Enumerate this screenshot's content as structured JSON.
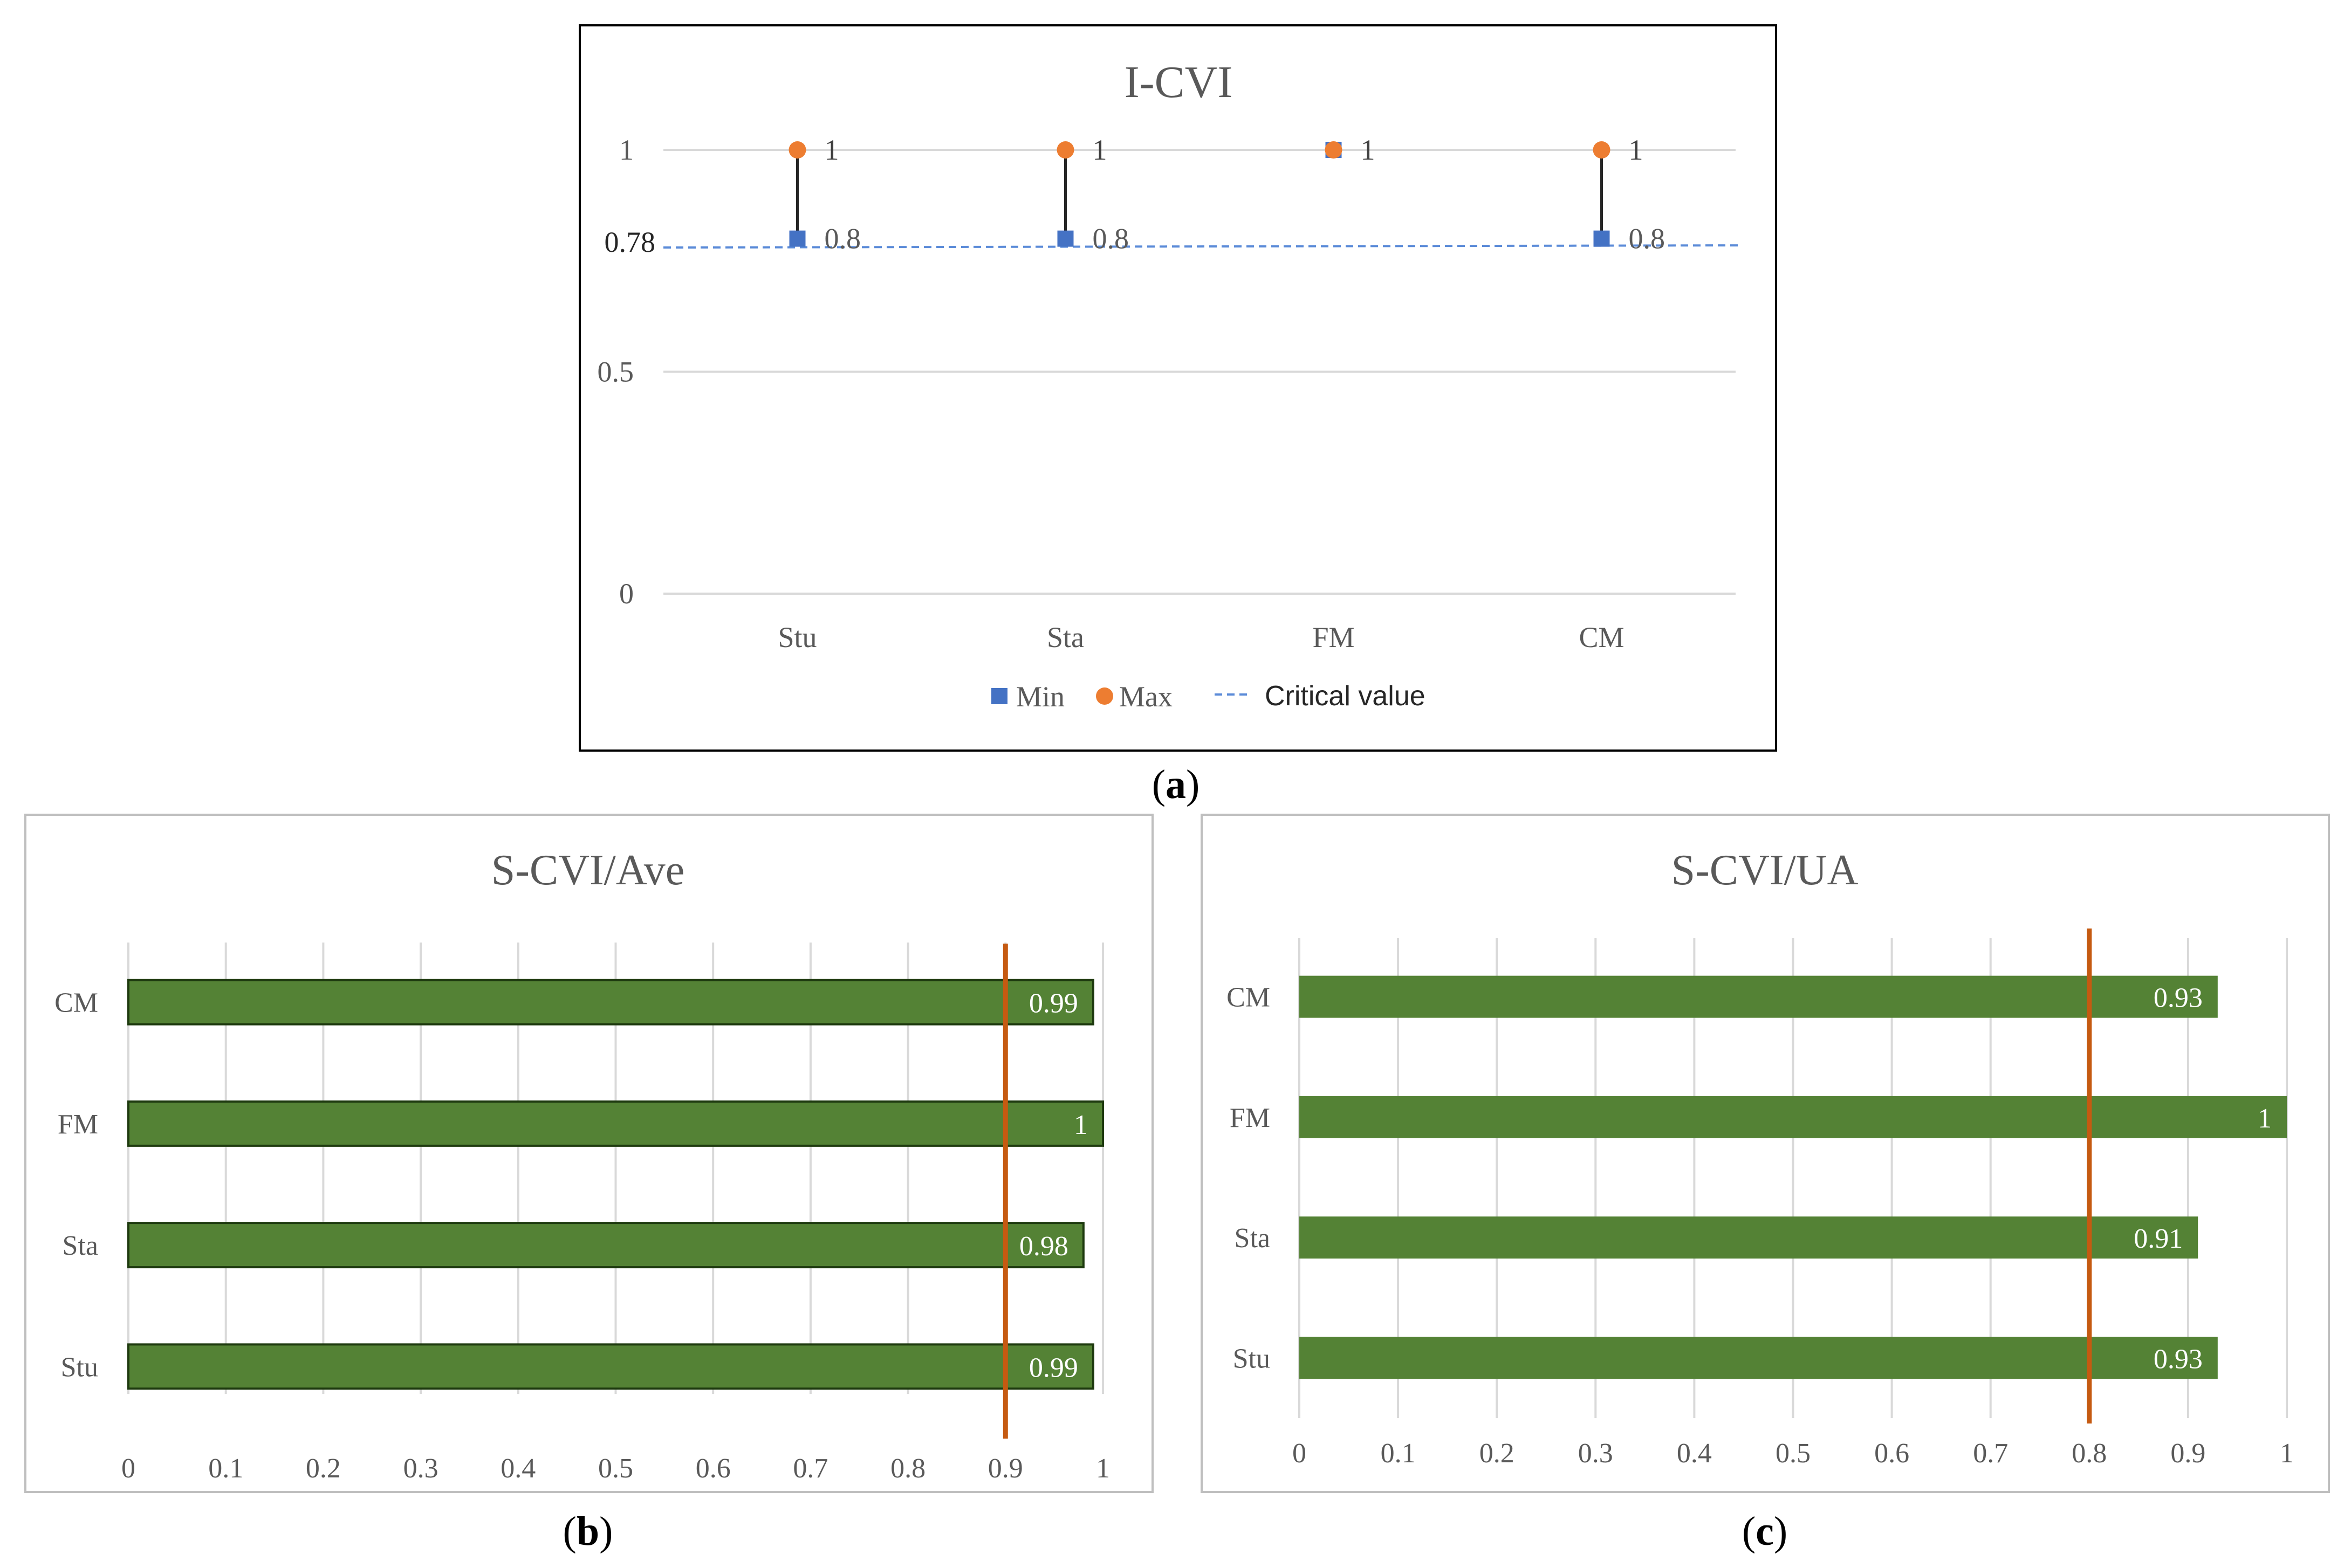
{
  "chart_data": [
    {
      "id": "a",
      "type": "scatter",
      "title": "I-CVI",
      "panel_label": "(a)",
      "panel_letter": "a",
      "categories": [
        "Stu",
        "Sta",
        "FM",
        "CM"
      ],
      "yticks": [
        "0",
        "0.5",
        "1"
      ],
      "ylim": [
        0,
        1
      ],
      "series": [
        {
          "name": "Min",
          "marker": "square",
          "color": "#4472C4",
          "values": [
            0.8,
            0.8,
            1,
            0.8
          ],
          "labels": [
            "0.8",
            "0.8",
            "",
            "0.8"
          ]
        },
        {
          "name": "Max",
          "marker": "circle",
          "color": "#ED7D31",
          "values": [
            1,
            1,
            1,
            1
          ],
          "labels": [
            "1",
            "1",
            "1",
            "1"
          ]
        }
      ],
      "critical_value": {
        "name": "Critical  value",
        "value": 0.78,
        "label": "0.78",
        "color": "#5B8BD8"
      },
      "legend": "bottom",
      "grid": true
    },
    {
      "id": "b",
      "type": "bar",
      "orientation": "horizontal",
      "title": "S-CVI/Ave",
      "panel_label": "(b)",
      "panel_letter": "b",
      "categories": [
        "CM",
        "FM",
        "Sta",
        "Stu"
      ],
      "values": [
        0.99,
        1,
        0.98,
        0.99
      ],
      "labels": [
        "0.99",
        "1",
        "0.98",
        "0.99"
      ],
      "xticks": [
        "0",
        "0.1",
        "0.2",
        "0.3",
        "0.4",
        "0.5",
        "0.6",
        "0.7",
        "0.8",
        "0.9",
        "1"
      ],
      "xlim": [
        0,
        1
      ],
      "reference_line": 0.9,
      "bar_color": "#548235",
      "line_color": "#C55A11",
      "grid": true
    },
    {
      "id": "c",
      "type": "bar",
      "orientation": "horizontal",
      "title": "S-CVI/UA",
      "panel_label": "(c)",
      "panel_letter": "c",
      "categories": [
        "CM",
        "FM",
        "Sta",
        "Stu"
      ],
      "values": [
        0.93,
        1,
        0.91,
        0.93
      ],
      "labels": [
        "0.93",
        "1",
        "0.91",
        "0.93"
      ],
      "xticks": [
        "0",
        "0.1",
        "0.2",
        "0.3",
        "0.4",
        "0.5",
        "0.6",
        "0.7",
        "0.8",
        "0.9",
        "1"
      ],
      "xlim": [
        0,
        1
      ],
      "reference_line": 0.8,
      "bar_color": "#548235",
      "line_color": "#C55A11",
      "grid": true
    }
  ]
}
